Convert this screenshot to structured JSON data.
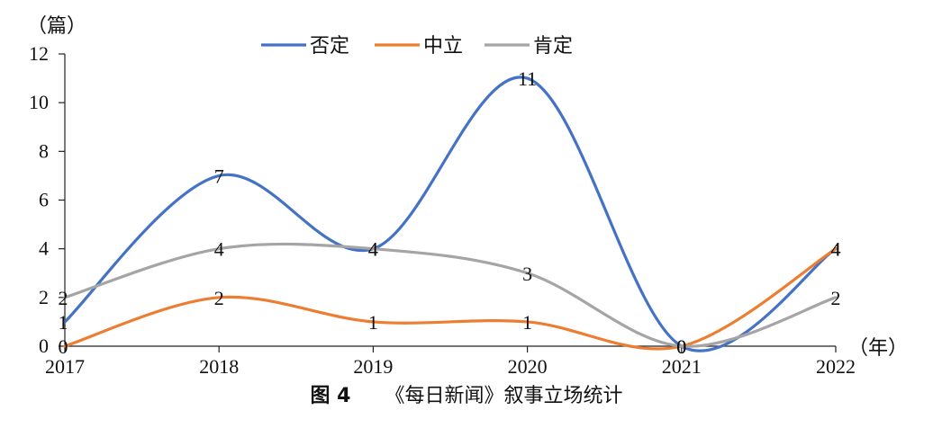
{
  "chart_data": {
    "type": "line",
    "categories": [
      "2017",
      "2018",
      "2019",
      "2020",
      "2021",
      "2022"
    ],
    "series": [
      {
        "name": "否定",
        "color": "#4472c4",
        "values": [
          1,
          7,
          4,
          11,
          0,
          4
        ]
      },
      {
        "name": "中立",
        "color": "#ed7d31",
        "values": [
          0,
          2,
          1,
          1,
          0,
          4
        ]
      },
      {
        "name": "肯定",
        "color": "#a5a5a5",
        "values": [
          2,
          4,
          4,
          3,
          0,
          2
        ]
      }
    ],
    "ylim": [
      0,
      12
    ],
    "yticks": [
      "0",
      "2",
      "4",
      "6",
      "8",
      "10",
      "12"
    ],
    "ylabel": "（篇）",
    "xlabel": "（年）",
    "legend_position": "top-center",
    "smooth": true,
    "grid": false
  },
  "caption": {
    "figure_label": "图 4",
    "title": "《每日新闻》叙事立场统计"
  }
}
